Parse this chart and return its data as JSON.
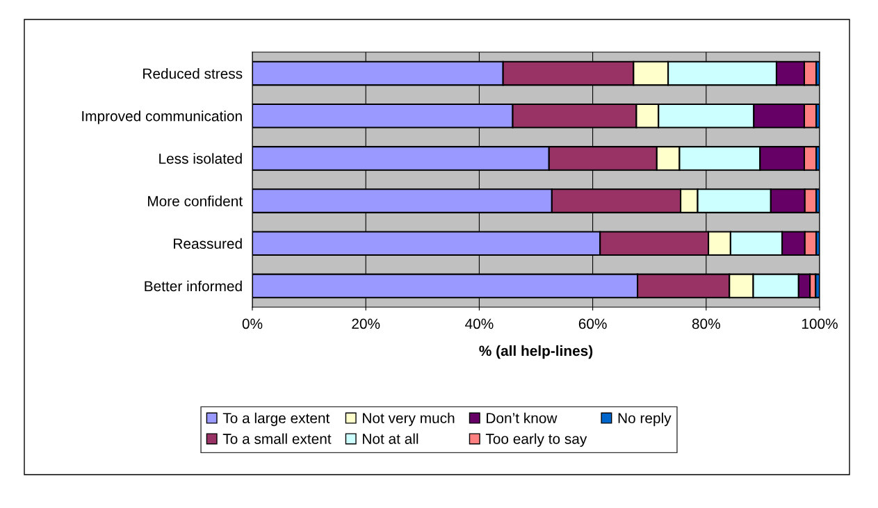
{
  "chart_data": {
    "type": "bar",
    "orientation": "horizontal",
    "stacked": true,
    "categories": [
      "Reduced stress",
      "Improved communication",
      "Less isolated",
      "More confident",
      "Reassured",
      "Better informed"
    ],
    "series": [
      {
        "name": "To a large extent",
        "color": "#9999ff",
        "values": [
          44.2,
          45.9,
          52.3,
          52.8,
          61.3,
          67.9
        ]
      },
      {
        "name": "To a small extent",
        "color": "#993366",
        "values": [
          23.0,
          21.8,
          19.0,
          22.7,
          19.1,
          16.2
        ]
      },
      {
        "name": "Not very much",
        "color": "#ffffcc",
        "values": [
          6.1,
          3.9,
          4.0,
          3.0,
          3.9,
          4.2
        ]
      },
      {
        "name": "Not at all",
        "color": "#ccffff",
        "values": [
          19.1,
          16.8,
          14.2,
          12.9,
          9.1,
          8.0
        ]
      },
      {
        "name": "Don’t know",
        "color": "#660066",
        "values": [
          4.9,
          8.9,
          7.8,
          6.0,
          4.0,
          2.0
        ]
      },
      {
        "name": "Too early to say",
        "color": "#ff8080",
        "values": [
          2.1,
          2.1,
          2.1,
          2.0,
          2.0,
          1.0
        ]
      },
      {
        "name": "No reply",
        "color": "#0066cc",
        "values": [
          0.6,
          0.6,
          0.6,
          0.6,
          0.6,
          0.7
        ]
      }
    ],
    "xlabel": "% (all help-lines)",
    "xlim": [
      0,
      100
    ],
    "xticks": [
      {
        "value": 0,
        "label": "0%"
      },
      {
        "value": 20,
        "label": "20%"
      },
      {
        "value": 40,
        "label": "40%"
      },
      {
        "value": 60,
        "label": "60%"
      },
      {
        "value": 80,
        "label": "80%"
      },
      {
        "value": 100,
        "label": "100%"
      }
    ],
    "grid": "x",
    "legend": "bottom"
  }
}
